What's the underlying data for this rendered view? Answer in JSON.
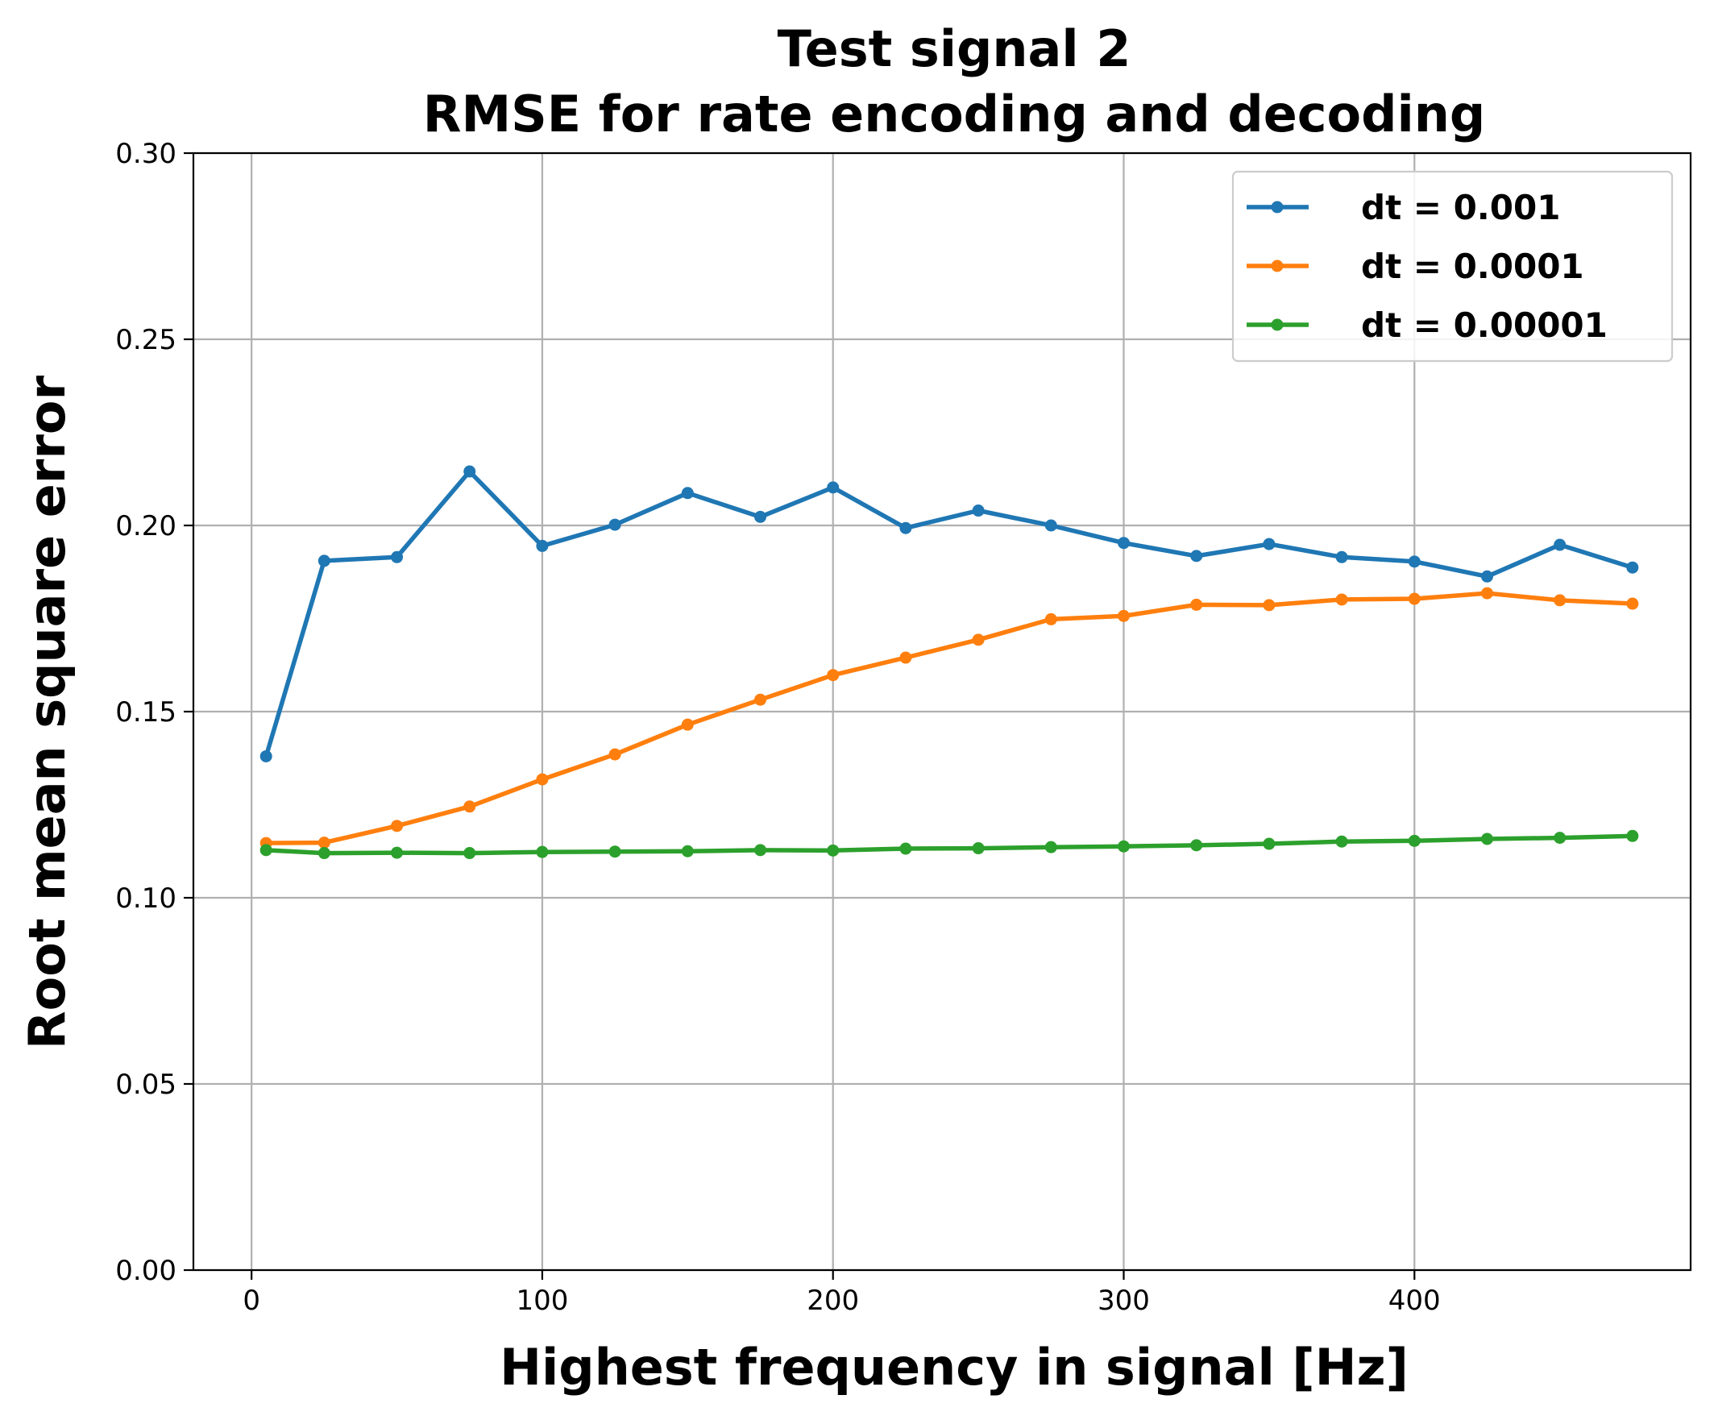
{
  "chart_data": {
    "type": "line",
    "title_line1": "Test signal 2",
    "title_line2": "RMSE for rate encoding and decoding",
    "xlabel": "Highest frequency in signal [Hz]",
    "ylabel": "Root mean square error",
    "xlim": [
      -20,
      495
    ],
    "ylim": [
      0,
      0.3
    ],
    "x_ticks": [
      0,
      100,
      200,
      300,
      400
    ],
    "y_ticks": [
      0.0,
      0.05,
      0.1,
      0.15,
      0.2,
      0.25,
      0.3
    ],
    "x_tick_labels": [
      "0",
      "100",
      "200",
      "300",
      "400"
    ],
    "y_tick_labels": [
      "0.00",
      "0.05",
      "0.10",
      "0.15",
      "0.20",
      "0.25",
      "0.30"
    ],
    "grid": true,
    "legend_position": "top-right",
    "x": [
      5,
      25,
      50,
      75,
      100,
      125,
      150,
      175,
      200,
      225,
      250,
      275,
      300,
      325,
      350,
      375,
      400,
      425,
      450,
      475
    ],
    "series": [
      {
        "name": "dt = 0.001",
        "color": "#1f77b4",
        "values": [
          0.138,
          0.1905,
          0.1915,
          0.2145,
          0.1945,
          0.2002,
          0.2087,
          0.2023,
          0.2102,
          0.1993,
          0.204,
          0.2,
          0.1953,
          0.1918,
          0.195,
          0.1915,
          0.1903,
          0.1863,
          0.1948,
          0.1887
        ]
      },
      {
        "name": "dt = 0.0001",
        "color": "#ff7f0e",
        "values": [
          0.1147,
          0.1148,
          0.1193,
          0.1245,
          0.1318,
          0.1385,
          0.1465,
          0.1532,
          0.1598,
          0.1645,
          0.1693,
          0.1748,
          0.1757,
          0.1787,
          0.1786,
          0.1801,
          0.1803,
          0.1818,
          0.1799,
          0.179
        ]
      },
      {
        "name": "dt = 0.00001",
        "color": "#2ca02c",
        "values": [
          0.1128,
          0.112,
          0.1121,
          0.112,
          0.1123,
          0.1124,
          0.1125,
          0.1128,
          0.1127,
          0.1132,
          0.1133,
          0.1136,
          0.1138,
          0.1141,
          0.1145,
          0.1151,
          0.1153,
          0.1158,
          0.1161,
          0.1166
        ]
      }
    ]
  }
}
